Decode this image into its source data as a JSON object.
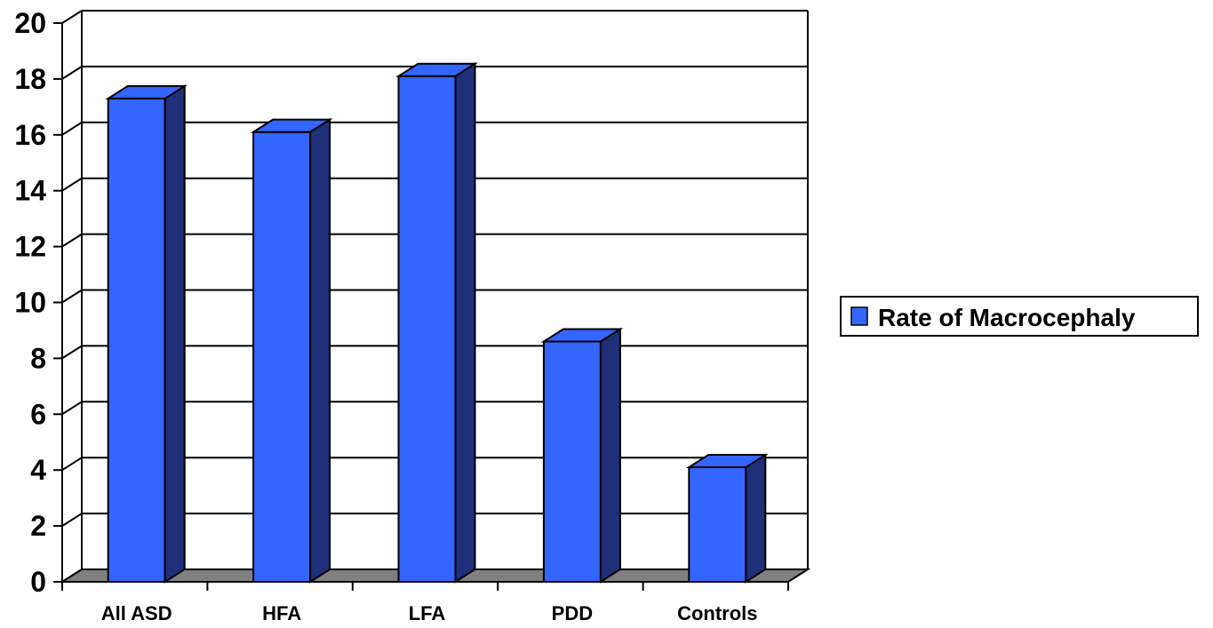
{
  "chart_data": {
    "type": "bar",
    "style": "3d-column",
    "categories": [
      "All ASD",
      "HFA",
      "LFA",
      "PDD",
      "Controls"
    ],
    "series": [
      {
        "name": "Rate of Macrocephaly",
        "values": [
          17.3,
          16.1,
          18.1,
          8.6,
          4.1
        ],
        "color": "#3366ff",
        "side_color": "#1f2f7a"
      }
    ],
    "ylim": [
      0,
      20
    ],
    "yticks": [
      0,
      2,
      4,
      6,
      8,
      10,
      12,
      14,
      16,
      18,
      20
    ],
    "xlabel": "",
    "ylabel": "",
    "title": "",
    "grid": true,
    "legend_position": "right",
    "floor_color": "#808080"
  }
}
